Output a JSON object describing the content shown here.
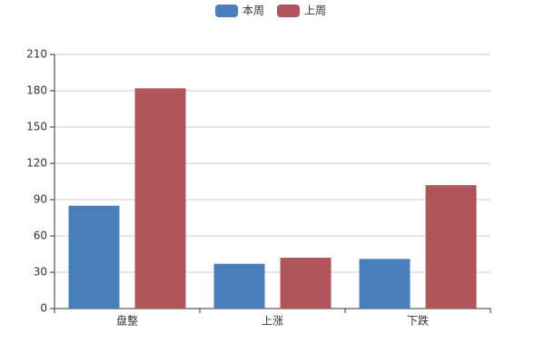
{
  "chart_data": {
    "type": "bar",
    "categories": [
      "盘整",
      "上涨",
      "下跌"
    ],
    "series": [
      {
        "name": "本周",
        "color": "#4a7ebb",
        "values": [
          85,
          37,
          41
        ]
      },
      {
        "name": "上周",
        "color": "#b0555a",
        "values": [
          182,
          42,
          102
        ]
      }
    ],
    "ylim": [
      0,
      210
    ],
    "yticks": [
      0,
      30,
      60,
      90,
      120,
      150,
      180,
      210
    ],
    "grid": true,
    "legend": "top"
  }
}
